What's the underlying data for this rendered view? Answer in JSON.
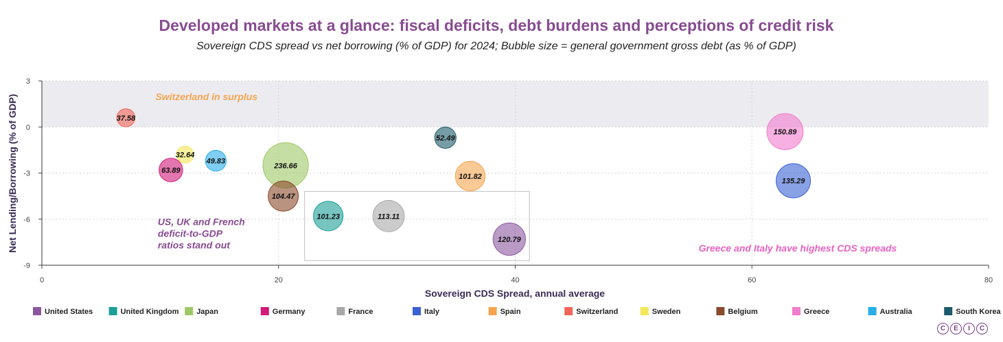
{
  "chart_data": {
    "type": "scatter",
    "title": "Developed markets at a glance: fiscal deficits, debt burdens and perceptions of credit risk",
    "subtitle": "Sovereign CDS spread vs net borrowing (% of GDP) for 2024; Bubble size = general government gross debt (as % of GDP)",
    "xlabel": "Sovereign CDS Spread, annual average",
    "ylabel": "Net Lending/Borrowing (% of GDP)",
    "xlim": [
      0,
      80
    ],
    "ylim": [
      -9,
      3
    ],
    "xticks": [
      "0",
      "20",
      "40",
      "60",
      "80"
    ],
    "yticks": [
      "3",
      "0",
      "-3",
      "-6",
      "-9"
    ],
    "grid": true,
    "legend_position": "bottom",
    "bubble_size_measure": "general government gross debt (as % of GDP)",
    "series": [
      {
        "name": "United States",
        "color": "#8b58a0",
        "x": 39.5,
        "y": -7.3,
        "size": 120.79,
        "label": "120.79"
      },
      {
        "name": "United Kingdom",
        "color": "#1a9f97",
        "x": 24.2,
        "y": -5.8,
        "size": 101.23,
        "label": "101.23"
      },
      {
        "name": "Japan",
        "color": "#9ec865",
        "x": 20.6,
        "y": -2.5,
        "size": 236.66,
        "label": "236.66"
      },
      {
        "name": "Germany",
        "color": "#d11a7a",
        "x": 10.9,
        "y": -2.8,
        "size": 63.89,
        "label": "63.89"
      },
      {
        "name": "France",
        "color": "#a8a8a8",
        "x": 29.3,
        "y": -5.8,
        "size": 113.11,
        "label": "113.11"
      },
      {
        "name": "Italy",
        "color": "#3a62d4",
        "x": 63.5,
        "y": -3.5,
        "size": 135.29,
        "label": "135.29"
      },
      {
        "name": "Spain",
        "color": "#f5a550",
        "x": 36.2,
        "y": -3.2,
        "size": 101.82,
        "label": "101.82"
      },
      {
        "name": "Switzerland",
        "color": "#f26659",
        "x": 7.1,
        "y": 0.6,
        "size": 37.58,
        "label": "37.58"
      },
      {
        "name": "Sweden",
        "color": "#f4e85a",
        "x": 12.1,
        "y": -1.8,
        "size": 32.64,
        "label": "32.64"
      },
      {
        "name": "Belgium",
        "color": "#8a4b2c",
        "x": 20.4,
        "y": -4.5,
        "size": 104.47,
        "label": "104.47"
      },
      {
        "name": "Greece",
        "color": "#f27ccd",
        "x": 62.8,
        "y": -0.3,
        "size": 150.89,
        "label": "150.89"
      },
      {
        "name": "Australia",
        "color": "#29aee8",
        "x": 14.7,
        "y": -2.2,
        "size": 49.83,
        "label": "49.83"
      },
      {
        "name": "South Korea",
        "color": "#1d5a6b",
        "x": 34.1,
        "y": -0.7,
        "size": 52.49,
        "label": "52.49"
      }
    ],
    "surplus_band": {
      "from": 0,
      "to": 3,
      "color": "#ecebf0"
    },
    "highlight_box": {
      "x0": 22.2,
      "x1": 41.2,
      "y0": -8.7,
      "y1": -4.2
    },
    "annotations": [
      {
        "text": [
          "Switzerland in surplus"
        ],
        "x": 9.6,
        "y": 1.75,
        "color": "#f5a550"
      },
      {
        "text": [
          "US, UK and French",
          "deficit-to-GDP",
          "ratios stand out"
        ],
        "x": 9.8,
        "y": -6.4,
        "color": "#874b91"
      },
      {
        "text": [
          "Greece and Italy have highest CDS spreads"
        ],
        "x": 55.5,
        "y": -8.1,
        "color": "#e862c0"
      }
    ]
  },
  "logo_letters": [
    "C",
    "E",
    "I",
    "C"
  ],
  "logo_color": "#7a3f8a"
}
